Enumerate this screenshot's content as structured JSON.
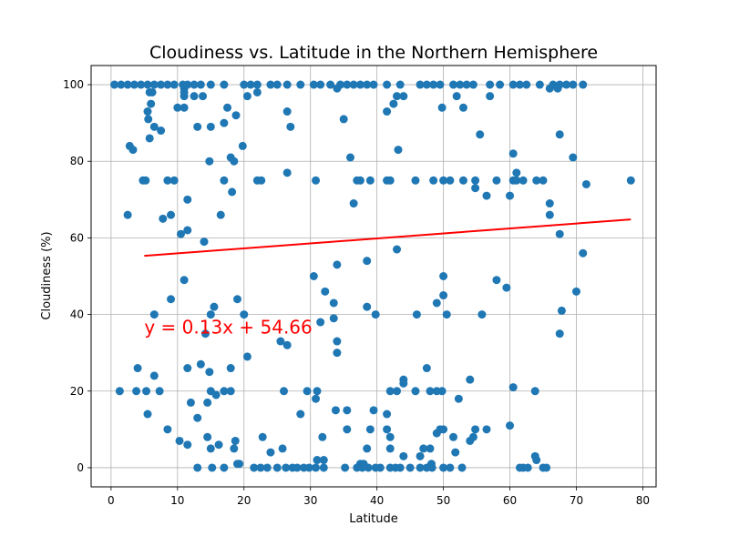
{
  "chart_data": {
    "type": "scatter",
    "title": "Cloudiness vs. Latitude in the Northern Hemisphere",
    "xlabel": "Latitude",
    "ylabel": "Cloudiness (%)",
    "xlim": [
      -3,
      82
    ],
    "ylim": [
      -5,
      105
    ],
    "xticks": [
      0,
      10,
      20,
      30,
      40,
      50,
      60,
      70,
      80
    ],
    "yticks": [
      0,
      20,
      40,
      60,
      80,
      100
    ],
    "grid": true,
    "point_color": "#1f77b4",
    "regression": {
      "equation": "y = 0.13x + 54.66",
      "slope": 0.13,
      "intercept": 54.66,
      "x_range": [
        5,
        78.2
      ],
      "color": "#ff0000",
      "label_position": {
        "x": 5,
        "y": 35
      }
    },
    "points": [
      [
        0.5,
        100
      ],
      [
        1.5,
        100
      ],
      [
        2.5,
        100
      ],
      [
        3.5,
        100
      ],
      [
        4.5,
        100
      ],
      [
        5.5,
        100
      ],
      [
        6.5,
        100
      ],
      [
        7.5,
        100
      ],
      [
        8.5,
        100
      ],
      [
        9.5,
        100
      ],
      [
        10.8,
        100
      ],
      [
        11.5,
        100
      ],
      [
        12.5,
        100
      ],
      [
        13.5,
        100
      ],
      [
        15,
        100
      ],
      [
        17,
        100
      ],
      [
        20,
        100
      ],
      [
        21,
        100
      ],
      [
        22,
        100
      ],
      [
        24,
        100
      ],
      [
        25,
        100
      ],
      [
        26.5,
        100
      ],
      [
        28.5,
        100
      ],
      [
        30.5,
        100
      ],
      [
        31.5,
        100
      ],
      [
        33,
        100
      ],
      [
        34.5,
        100
      ],
      [
        35.5,
        100
      ],
      [
        36.5,
        100
      ],
      [
        37.5,
        100
      ],
      [
        38.5,
        100
      ],
      [
        39.5,
        100
      ],
      [
        41.5,
        100
      ],
      [
        43.5,
        100
      ],
      [
        46.5,
        100
      ],
      [
        47.5,
        100
      ],
      [
        48.5,
        100
      ],
      [
        49.5,
        100
      ],
      [
        51.5,
        100
      ],
      [
        52.5,
        100
      ],
      [
        53.5,
        100
      ],
      [
        54.5,
        100
      ],
      [
        57,
        100
      ],
      [
        58.5,
        100
      ],
      [
        60.5,
        100
      ],
      [
        61.5,
        100
      ],
      [
        62.5,
        100
      ],
      [
        64.5,
        100
      ],
      [
        66.5,
        100
      ],
      [
        67.5,
        100
      ],
      [
        68.5,
        100
      ],
      [
        69.5,
        100
      ],
      [
        71,
        100
      ],
      [
        11,
        99
      ],
      [
        34,
        99
      ],
      [
        66,
        99
      ],
      [
        67.2,
        99
      ],
      [
        5.8,
        98
      ],
      [
        6.2,
        98
      ],
      [
        11,
        98
      ],
      [
        22,
        98
      ],
      [
        11,
        97
      ],
      [
        12.5,
        97
      ],
      [
        13.8,
        97
      ],
      [
        20.5,
        97
      ],
      [
        43,
        97
      ],
      [
        44,
        97
      ],
      [
        52,
        97
      ],
      [
        57,
        97
      ],
      [
        6,
        95
      ],
      [
        42.5,
        95
      ],
      [
        10,
        94
      ],
      [
        11,
        94
      ],
      [
        17.5,
        94
      ],
      [
        41.5,
        93
      ],
      [
        49.8,
        94
      ],
      [
        53,
        94
      ],
      [
        5.5,
        93
      ],
      [
        26.5,
        93
      ],
      [
        18.8,
        92
      ],
      [
        5.6,
        91
      ],
      [
        35,
        91
      ],
      [
        17,
        90
      ],
      [
        6.5,
        89
      ],
      [
        13,
        89
      ],
      [
        15,
        89
      ],
      [
        27,
        89
      ],
      [
        7.5,
        88
      ],
      [
        55.5,
        87
      ],
      [
        67.5,
        87
      ],
      [
        5.8,
        86
      ],
      [
        19.8,
        84
      ],
      [
        2.8,
        84
      ],
      [
        3.3,
        83
      ],
      [
        43.2,
        83
      ],
      [
        60.5,
        82
      ],
      [
        18,
        81
      ],
      [
        36,
        81
      ],
      [
        69.5,
        81
      ],
      [
        14.8,
        80
      ],
      [
        18.5,
        80
      ],
      [
        26.5,
        77
      ],
      [
        61,
        77
      ],
      [
        4.8,
        75
      ],
      [
        5.2,
        75
      ],
      [
        8.5,
        75
      ],
      [
        9.5,
        75
      ],
      [
        17,
        75
      ],
      [
        22,
        75
      ],
      [
        22.6,
        75
      ],
      [
        30.8,
        75
      ],
      [
        37,
        75
      ],
      [
        37.5,
        75
      ],
      [
        39,
        75
      ],
      [
        41.5,
        75
      ],
      [
        42,
        75
      ],
      [
        45.8,
        75
      ],
      [
        48.5,
        75
      ],
      [
        50,
        75
      ],
      [
        51,
        75
      ],
      [
        53,
        75
      ],
      [
        54.8,
        75
      ],
      [
        58,
        75
      ],
      [
        60.5,
        75
      ],
      [
        61,
        75
      ],
      [
        62,
        75
      ],
      [
        64,
        75
      ],
      [
        65,
        75
      ],
      [
        78.2,
        75
      ],
      [
        71.5,
        74
      ],
      [
        54.8,
        73
      ],
      [
        18.2,
        72
      ],
      [
        56.5,
        71
      ],
      [
        60,
        71
      ],
      [
        11.5,
        70
      ],
      [
        36.5,
        69
      ],
      [
        66,
        69
      ],
      [
        9,
        66
      ],
      [
        16.5,
        66
      ],
      [
        2.5,
        66
      ],
      [
        66,
        66
      ],
      [
        7.8,
        65
      ],
      [
        11.5,
        62
      ],
      [
        67.5,
        61
      ],
      [
        10.5,
        61
      ],
      [
        14,
        59
      ],
      [
        43,
        57
      ],
      [
        71,
        56
      ],
      [
        38.5,
        54
      ],
      [
        34,
        53
      ],
      [
        30.5,
        50
      ],
      [
        50,
        50
      ],
      [
        11,
        49
      ],
      [
        58,
        49
      ],
      [
        59.5,
        47
      ],
      [
        70,
        46
      ],
      [
        32.2,
        46
      ],
      [
        50,
        45
      ],
      [
        9,
        44
      ],
      [
        19,
        44
      ],
      [
        49,
        43
      ],
      [
        33.5,
        43
      ],
      [
        15.5,
        42
      ],
      [
        38.5,
        42
      ],
      [
        67.8,
        41
      ],
      [
        6.5,
        40
      ],
      [
        15,
        40
      ],
      [
        20,
        40
      ],
      [
        39.8,
        40
      ],
      [
        46,
        40
      ],
      [
        50.5,
        40
      ],
      [
        55.8,
        40
      ],
      [
        33.5,
        39
      ],
      [
        31.5,
        38
      ],
      [
        14.2,
        35
      ],
      [
        67.5,
        35
      ],
      [
        25.5,
        33
      ],
      [
        34,
        33
      ],
      [
        26.5,
        32
      ],
      [
        34,
        30
      ],
      [
        20.5,
        29
      ],
      [
        13.5,
        27
      ],
      [
        4,
        26
      ],
      [
        11.5,
        26
      ],
      [
        18,
        26
      ],
      [
        47.5,
        26
      ],
      [
        14.8,
        25
      ],
      [
        6.5,
        24
      ],
      [
        44,
        23
      ],
      [
        54,
        23
      ],
      [
        44,
        22
      ],
      [
        60.5,
        21
      ],
      [
        1.3,
        20
      ],
      [
        3.8,
        20
      ],
      [
        5.3,
        20
      ],
      [
        7.3,
        20
      ],
      [
        15,
        20
      ],
      [
        17,
        20
      ],
      [
        18,
        20
      ],
      [
        26,
        20
      ],
      [
        29.5,
        20
      ],
      [
        31,
        20
      ],
      [
        42,
        20
      ],
      [
        43,
        20
      ],
      [
        45.8,
        20
      ],
      [
        48,
        20
      ],
      [
        49,
        20
      ],
      [
        49.8,
        20
      ],
      [
        63.8,
        20
      ],
      [
        15.8,
        19
      ],
      [
        30.8,
        18
      ],
      [
        52.3,
        18
      ],
      [
        12,
        17
      ],
      [
        14.5,
        17
      ],
      [
        35.5,
        15
      ],
      [
        5.5,
        14
      ],
      [
        33.8,
        15
      ],
      [
        39.5,
        15
      ],
      [
        41.5,
        14
      ],
      [
        28.5,
        14
      ],
      [
        13,
        13
      ],
      [
        41.5,
        10
      ],
      [
        56.5,
        10
      ],
      [
        8.5,
        10
      ],
      [
        35.5,
        10
      ],
      [
        39,
        10
      ],
      [
        49.5,
        10
      ],
      [
        50,
        10
      ],
      [
        54.8,
        10
      ],
      [
        60,
        11
      ],
      [
        49,
        9
      ],
      [
        31.8,
        8
      ],
      [
        22.8,
        8
      ],
      [
        51.5,
        8
      ],
      [
        42,
        8
      ],
      [
        54.5,
        8
      ],
      [
        10.3,
        7
      ],
      [
        18.7,
        7
      ],
      [
        54,
        7
      ],
      [
        11.5,
        6
      ],
      [
        16.2,
        6
      ],
      [
        48,
        5
      ],
      [
        14.5,
        8
      ],
      [
        15,
        5
      ],
      [
        18.5,
        5
      ],
      [
        25.8,
        5
      ],
      [
        24,
        4
      ],
      [
        38.5,
        5
      ],
      [
        42,
        5
      ],
      [
        51.8,
        4
      ],
      [
        44,
        3
      ],
      [
        47,
        5
      ],
      [
        63.8,
        3
      ],
      [
        64,
        2
      ],
      [
        31,
        2
      ],
      [
        32,
        2
      ],
      [
        46.5,
        3
      ],
      [
        19,
        1
      ],
      [
        19.3,
        1
      ],
      [
        37.5,
        1
      ],
      [
        38,
        1
      ],
      [
        48.2,
        1
      ],
      [
        13,
        0
      ],
      [
        15.2,
        0
      ],
      [
        17,
        0
      ],
      [
        21.5,
        0
      ],
      [
        22.5,
        0
      ],
      [
        23.5,
        0
      ],
      [
        25,
        0
      ],
      [
        26.3,
        0
      ],
      [
        27.3,
        0
      ],
      [
        28,
        0
      ],
      [
        29,
        0
      ],
      [
        29.8,
        0
      ],
      [
        30.8,
        0
      ],
      [
        32,
        0
      ],
      [
        35.2,
        0
      ],
      [
        37,
        0
      ],
      [
        37.8,
        0
      ],
      [
        38.7,
        0
      ],
      [
        39.8,
        0
      ],
      [
        40.5,
        0
      ],
      [
        42,
        0
      ],
      [
        42.8,
        0
      ],
      [
        43.5,
        0
      ],
      [
        45,
        0
      ],
      [
        46.5,
        0
      ],
      [
        47.5,
        0
      ],
      [
        48.3,
        0
      ],
      [
        50,
        0
      ],
      [
        51,
        0
      ],
      [
        52.8,
        0
      ],
      [
        61.5,
        0
      ],
      [
        62,
        0
      ],
      [
        62.7,
        0
      ],
      [
        65,
        0
      ],
      [
        65.5,
        0
      ]
    ]
  }
}
